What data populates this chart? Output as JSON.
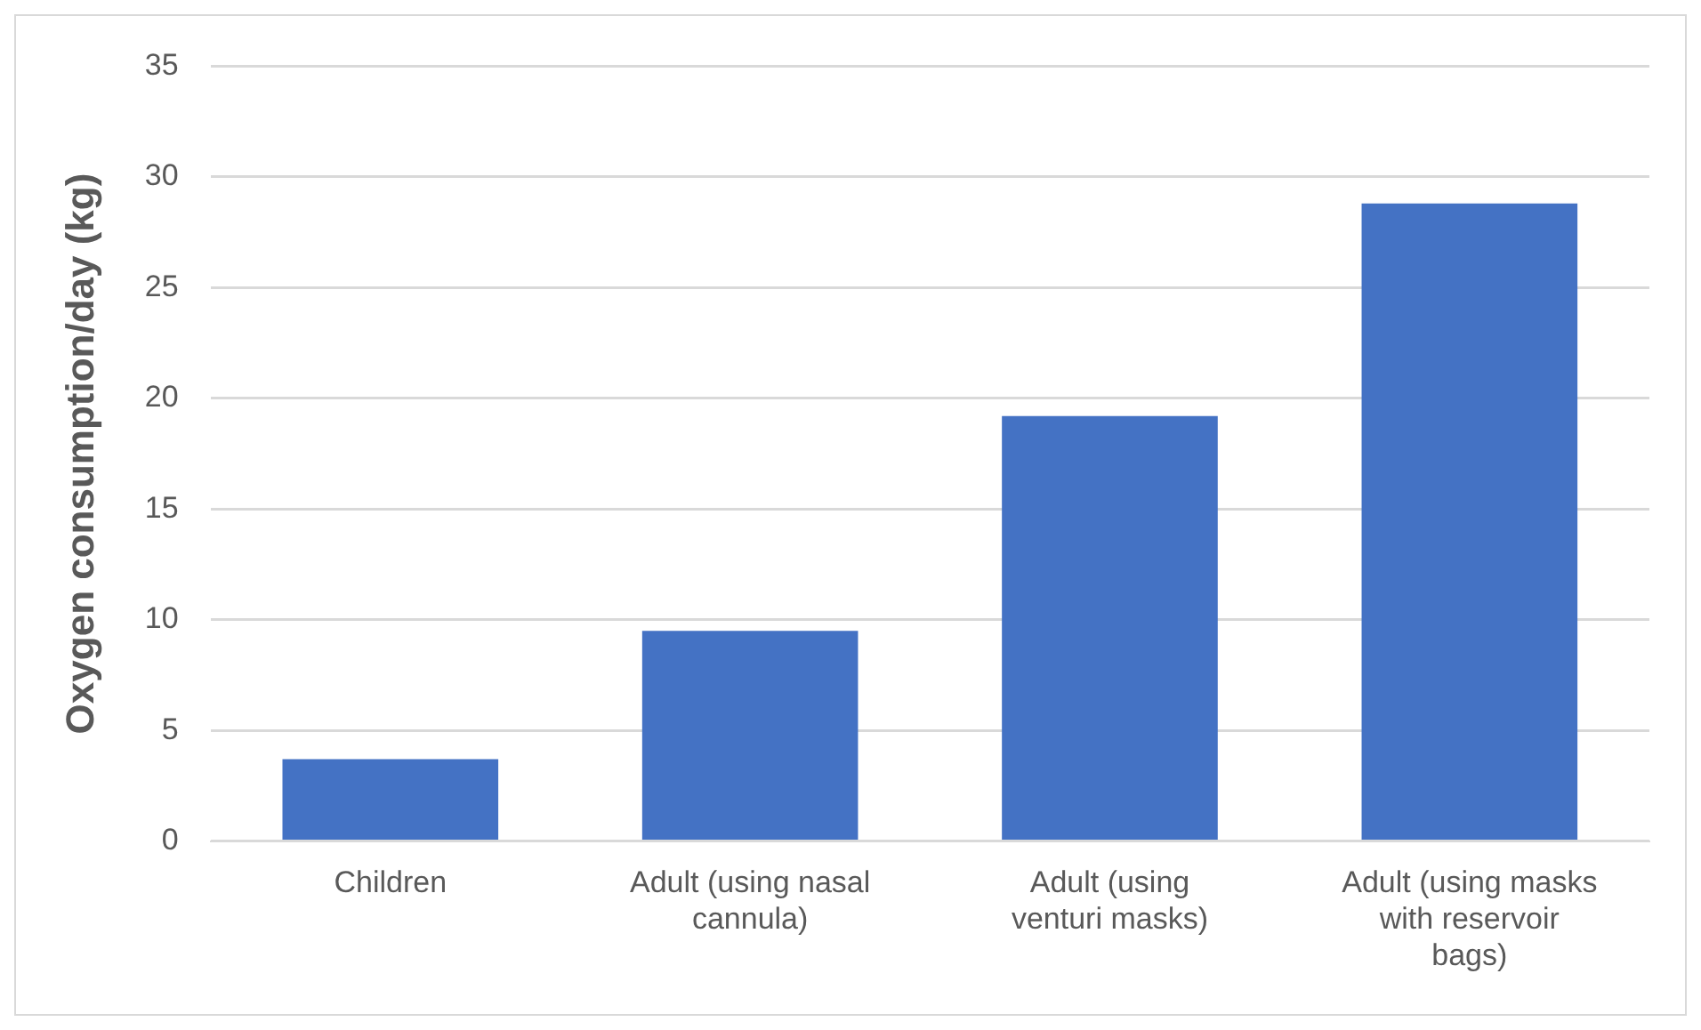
{
  "chart_data": {
    "type": "bar",
    "ylabel": "Oxygen consumption/day (kg)",
    "categories": [
      "Children",
      "Adult (using nasal cannula)",
      "Adult (using venturi masks)",
      "Adult (using masks with reservoir bags)"
    ],
    "values": [
      3.7,
      9.5,
      19.2,
      28.8
    ],
    "color": "#4472c4",
    "ylim": [
      0,
      35
    ],
    "yticks": [
      0,
      5,
      10,
      15,
      20,
      25,
      30,
      35
    ],
    "grid": "y",
    "legend": false
  }
}
